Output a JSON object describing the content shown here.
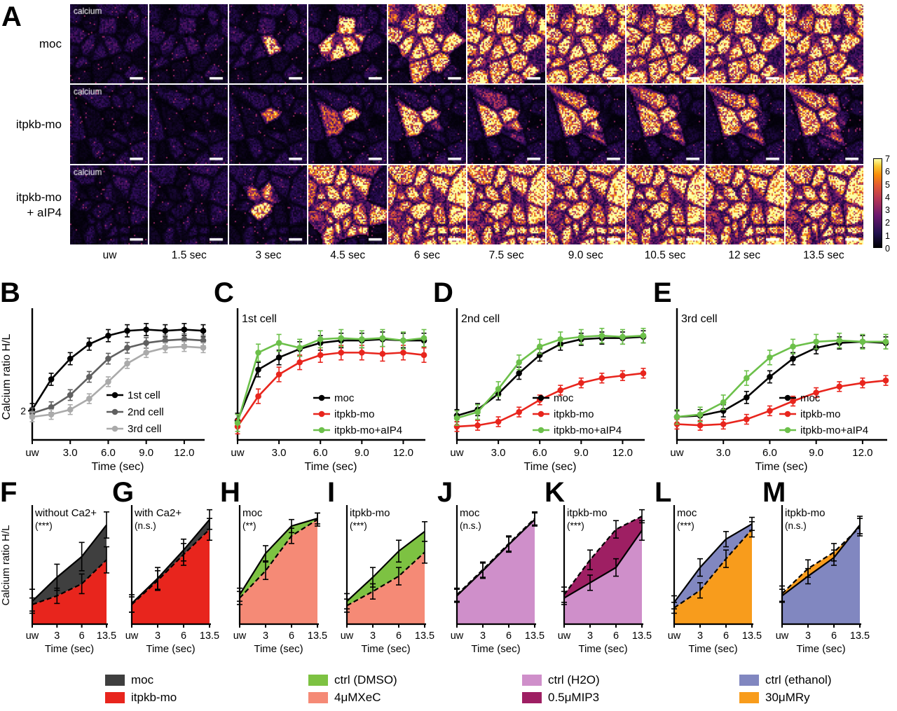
{
  "panel_a": {
    "label": "A",
    "overlay_label": "calcium",
    "rows": [
      {
        "label": "moc",
        "spread": [
          0,
          0.1,
          0.17,
          0.3,
          0.47,
          0.62,
          0.78,
          0.95,
          1.0,
          1.0
        ],
        "intensity": [
          0.1,
          0.85,
          0.88,
          0.9,
          0.9,
          0.9,
          0.9,
          0.88,
          0.86,
          0.86
        ]
      },
      {
        "label": "itpkb-mo",
        "spread": [
          0,
          0.1,
          0.15,
          0.19,
          0.22,
          0.25,
          0.28,
          0.3,
          0.32,
          0.33
        ],
        "intensity": [
          0.1,
          0.9,
          0.95,
          0.95,
          0.95,
          0.95,
          0.93,
          0.92,
          0.92,
          0.9
        ]
      },
      {
        "label": "itpkb-mo\n+ aIP4",
        "spread": [
          0,
          0.12,
          0.26,
          0.5,
          0.75,
          0.95,
          1.0,
          1.0,
          1.0,
          1.0
        ],
        "intensity": [
          0.14,
          0.95,
          0.95,
          0.95,
          0.95,
          0.95,
          0.93,
          0.92,
          0.92,
          0.92
        ]
      }
    ],
    "time_labels": [
      "uw",
      "1.5 sec",
      "3 sec",
      "4.5 sec",
      "6 sec",
      "7.5 sec",
      "9.0 sec",
      "10.5 sec",
      "12 sec",
      "13.5 sec"
    ],
    "colorbar_ticks": [
      "7",
      "6",
      "5",
      "4",
      "3",
      "2",
      "1",
      "0"
    ]
  },
  "chart_data": [
    {
      "id": "B",
      "label": "B",
      "type": "line",
      "ylabel": "Calcium ratio H/L",
      "xlabel": "Time (sec)",
      "ytick_label": "2",
      "x": [
        "uw",
        "1.5",
        "3",
        "4.5",
        "6",
        "7.5",
        "9",
        "10.5",
        "12",
        "13.5"
      ],
      "xtick_labels": [
        "uw",
        "3.0",
        "6.0",
        "9.0",
        "12.0"
      ],
      "series": [
        {
          "name": "1st cell",
          "color": "#000000",
          "err": 0.25,
          "values": [
            2.05,
            3.3,
            4.15,
            4.75,
            5.1,
            5.3,
            5.35,
            5.3,
            5.35,
            5.3
          ]
        },
        {
          "name": "2nd cell",
          "color": "#606060",
          "err": 0.22,
          "values": [
            1.9,
            2.15,
            2.65,
            3.4,
            4.15,
            4.6,
            4.8,
            4.9,
            4.95,
            4.9
          ]
        },
        {
          "name": "3rd cell",
          "color": "#aaaaaa",
          "err": 0.2,
          "values": [
            1.75,
            1.85,
            2.05,
            2.5,
            3.2,
            3.95,
            4.4,
            4.6,
            4.65,
            4.6
          ]
        }
      ]
    },
    {
      "id": "C",
      "label": "C",
      "type": "line",
      "title": "1st cell",
      "xlabel": "Time (sec)",
      "x": [
        "uw",
        "1.5",
        "3",
        "4.5",
        "6",
        "7.5",
        "9",
        "10.5",
        "12",
        "13.5"
      ],
      "xtick_labels": [
        "uw",
        "3.0",
        "6.0",
        "9.0",
        "12.0"
      ],
      "series": [
        {
          "name": "moc",
          "color": "#000000",
          "err": 0.3,
          "values": [
            1.6,
            3.7,
            4.2,
            4.55,
            4.8,
            4.9,
            4.9,
            4.95,
            4.9,
            4.9
          ]
        },
        {
          "name": "itpkb-mo",
          "color": "#e8251d",
          "err": 0.3,
          "values": [
            1.35,
            2.6,
            3.5,
            4.0,
            4.3,
            4.4,
            4.4,
            4.35,
            4.4,
            4.3
          ]
        },
        {
          "name": "itpkb-mo+aIP4",
          "color": "#6cc04a",
          "err": 0.35,
          "values": [
            1.5,
            4.4,
            4.8,
            4.6,
            4.95,
            5.0,
            4.95,
            5.0,
            4.9,
            5.0
          ]
        }
      ]
    },
    {
      "id": "D",
      "label": "D",
      "type": "line",
      "title": "2nd cell",
      "xlabel": "Time (sec)",
      "x": [
        "uw",
        "1.5",
        "3",
        "4.5",
        "6",
        "7.5",
        "9",
        "10.5",
        "12",
        "13.5"
      ],
      "xtick_labels": [
        "uw",
        "3.0",
        "6.0",
        "9.0",
        "12.0"
      ],
      "series": [
        {
          "name": "moc",
          "color": "#000000",
          "err": 0.25,
          "values": [
            1.8,
            2.05,
            2.7,
            3.55,
            4.3,
            4.75,
            4.95,
            5.0,
            5.0,
            5.05
          ]
        },
        {
          "name": "itpkb-mo",
          "color": "#e8251d",
          "err": 0.2,
          "values": [
            1.35,
            1.4,
            1.55,
            1.95,
            2.45,
            2.85,
            3.15,
            3.35,
            3.45,
            3.55
          ]
        },
        {
          "name": "itpkb-mo+aIP4",
          "color": "#6cc04a",
          "err": 0.3,
          "values": [
            1.7,
            1.95,
            2.9,
            4.0,
            4.65,
            4.95,
            5.05,
            5.1,
            5.05,
            5.1
          ]
        }
      ]
    },
    {
      "id": "E",
      "label": "E",
      "type": "line",
      "title": "3rd cell",
      "xlabel": "Time (sec)",
      "x": [
        "uw",
        "1.5",
        "3",
        "4.5",
        "6",
        "7.5",
        "9",
        "10.5",
        "12",
        "13.5"
      ],
      "xtick_labels": [
        "uw",
        "3.0",
        "6.0",
        "9.0",
        "12.0"
      ],
      "series": [
        {
          "name": "moc",
          "color": "#000000",
          "err": 0.25,
          "values": [
            1.75,
            1.8,
            2.0,
            2.55,
            3.4,
            4.15,
            4.6,
            4.8,
            4.85,
            4.8
          ]
        },
        {
          "name": "itpkb-mo",
          "color": "#e8251d",
          "err": 0.2,
          "values": [
            1.45,
            1.4,
            1.45,
            1.65,
            2.0,
            2.4,
            2.75,
            3.0,
            3.15,
            3.25
          ]
        },
        {
          "name": "itpkb-mo+aIP4",
          "color": "#6cc04a",
          "err": 0.3,
          "values": [
            1.75,
            1.85,
            2.35,
            3.35,
            4.2,
            4.65,
            4.85,
            4.9,
            4.85,
            4.85
          ]
        }
      ]
    },
    {
      "id": "F",
      "label": "F",
      "type": "area",
      "condition": "without Ca2+",
      "significance": "(***)",
      "ylabel": "Calcium ratio H/L",
      "xlabel": "Time (sec)",
      "x": [
        "uw",
        "3",
        "6",
        "13.5"
      ],
      "upper": {
        "name": "moc",
        "color": "#3f3f3f",
        "dashed": false,
        "values": [
          1.05,
          2.15,
          3.1,
          4.55
        ],
        "err": [
          0.55,
          0.6,
          0.65,
          0.6
        ]
      },
      "lower": {
        "name": "itpkb-mo",
        "color": "#e8251d",
        "dashed": true,
        "values": [
          0.9,
          1.3,
          1.85,
          2.95
        ],
        "err": [
          0.3,
          0.35,
          0.45,
          0.6
        ]
      }
    },
    {
      "id": "G",
      "label": "G",
      "type": "area",
      "condition": "with Ca2+",
      "significance": "(n.s.)",
      "xlabel": "Time (sec)",
      "x": [
        "uw",
        "3",
        "6",
        "13.5"
      ],
      "upper": {
        "name": "moc",
        "color": "#3f3f3f",
        "dashed": false,
        "values": [
          0.95,
          2.1,
          3.4,
          4.8
        ],
        "err": [
          0.4,
          0.5,
          0.5,
          0.45
        ]
      },
      "lower": {
        "name": "itpkb-mo",
        "color": "#e8251d",
        "dashed": true,
        "values": [
          0.9,
          2.0,
          3.2,
          4.35
        ],
        "err": [
          0.35,
          0.45,
          0.5,
          0.5
        ]
      }
    },
    {
      "id": "H",
      "label": "H",
      "type": "area",
      "condition": "moc",
      "significance": "(**)",
      "xlabel": "Time (sec)",
      "x": [
        "uw",
        "3",
        "6",
        "13.5"
      ],
      "upper": {
        "name": "ctrl (DMSO)",
        "color": "#7dc242",
        "dashed": false,
        "values": [
          1.35,
          3.25,
          4.5,
          4.85
        ],
        "err": [
          0.3,
          0.35,
          0.3,
          0.25
        ]
      },
      "lower": {
        "name": "4μMXeC",
        "color": "#f58a76",
        "dashed": true,
        "values": [
          1.2,
          2.45,
          4.05,
          4.8
        ],
        "err": [
          0.3,
          0.4,
          0.35,
          0.3
        ]
      }
    },
    {
      "id": "I",
      "label": "I",
      "type": "area",
      "condition": "itpkb-mo",
      "significance": "(***)",
      "xlabel": "Time (sec)",
      "x": [
        "uw",
        "3",
        "6",
        "13.5"
      ],
      "upper": {
        "name": "ctrl (DMSO)",
        "color": "#7dc242",
        "dashed": false,
        "values": [
          1.05,
          2.15,
          3.35,
          4.25
        ],
        "err": [
          0.35,
          0.45,
          0.5,
          0.45
        ]
      },
      "lower": {
        "name": "4μMXeC",
        "color": "#f58a76",
        "dashed": true,
        "values": [
          0.85,
          1.5,
          2.2,
          3.3
        ],
        "err": [
          0.3,
          0.35,
          0.4,
          0.5
        ]
      }
    },
    {
      "id": "J",
      "label": "J",
      "type": "area",
      "condition": "moc",
      "significance": "(n.s.)",
      "xlabel": "Time (sec)",
      "x": [
        "uw",
        "3",
        "6",
        "13.5"
      ],
      "upper": {
        "name": "0.5μMIP3",
        "color": "#9e1f63",
        "dashed": true,
        "values": [
          1.35,
          2.5,
          3.7,
          4.85
        ],
        "err": [
          0.3,
          0.35,
          0.35,
          0.3
        ]
      },
      "lower": {
        "name": "ctrl (H2O)",
        "color": "#cf8fca",
        "dashed": false,
        "values": [
          1.3,
          2.45,
          3.65,
          4.8
        ],
        "err": [
          0.3,
          0.35,
          0.35,
          0.3
        ]
      }
    },
    {
      "id": "K",
      "label": "K",
      "type": "area",
      "condition": "itpkb-mo",
      "significance": "(***)",
      "xlabel": "Time (sec)",
      "x": [
        "uw",
        "3",
        "6",
        "13.5"
      ],
      "upper": {
        "name": "0.5μMIP3",
        "color": "#9e1f63",
        "dashed": true,
        "values": [
          1.35,
          2.95,
          4.35,
          4.95
        ],
        "err": [
          0.35,
          0.45,
          0.4,
          0.3
        ]
      },
      "lower": {
        "name": "ctrl (H2O)",
        "color": "#cf8fca",
        "dashed": false,
        "values": [
          1.2,
          1.9,
          2.6,
          4.3
        ],
        "err": [
          0.3,
          0.35,
          0.4,
          0.45
        ]
      }
    },
    {
      "id": "L",
      "label": "L",
      "type": "area",
      "condition": "moc",
      "significance": "(***)",
      "xlabel": "Time (sec)",
      "x": [
        "uw",
        "3",
        "6",
        "13.5"
      ],
      "upper": {
        "name": "ctrl (ethanol)",
        "color": "#8187c0",
        "dashed": false,
        "values": [
          1.0,
          2.6,
          3.9,
          4.6
        ],
        "err": [
          0.3,
          0.4,
          0.35,
          0.3
        ]
      },
      "lower": {
        "name": "30μMRy",
        "color": "#f89c1c",
        "dashed": true,
        "values": [
          0.75,
          1.55,
          3.0,
          4.35
        ],
        "err": [
          0.25,
          0.35,
          0.4,
          0.35
        ]
      }
    },
    {
      "id": "M",
      "label": "M",
      "type": "area",
      "condition": "itpkb-mo",
      "significance": "(n.s.)",
      "xlabel": "Time (sec)",
      "x": [
        "uw",
        "3",
        "6",
        "13.5"
      ],
      "upper": {
        "name": "30μMRy",
        "color": "#f89c1c",
        "dashed": true,
        "values": [
          1.4,
          2.55,
          3.3,
          4.45
        ],
        "err": [
          0.35,
          0.4,
          0.4,
          0.4
        ]
      },
      "lower": {
        "name": "ctrl (ethanol)",
        "color": "#8187c0",
        "dashed": false,
        "values": [
          1.3,
          2.2,
          3.05,
          4.55
        ],
        "err": [
          0.3,
          0.35,
          0.35,
          0.4
        ]
      }
    }
  ],
  "legend_groups": [
    {
      "entries": [
        {
          "label": "moc",
          "color": "#3f3f3f"
        },
        {
          "label": "itpkb-mo",
          "color": "#e8251d"
        }
      ]
    },
    {
      "entries": [
        {
          "label": "ctrl (DMSO)",
          "color": "#7dc242"
        },
        {
          "label": "4μMXeC",
          "color": "#f58a76"
        }
      ]
    },
    {
      "entries": [
        {
          "label": "ctrl (H2O)",
          "color": "#cf8fca"
        },
        {
          "label": "0.5μMIP3",
          "color": "#9e1f63"
        }
      ]
    },
    {
      "entries": [
        {
          "label": "ctrl (ethanol)",
          "color": "#8187c0"
        },
        {
          "label": "30μMRy",
          "color": "#f89c1c"
        }
      ]
    }
  ]
}
